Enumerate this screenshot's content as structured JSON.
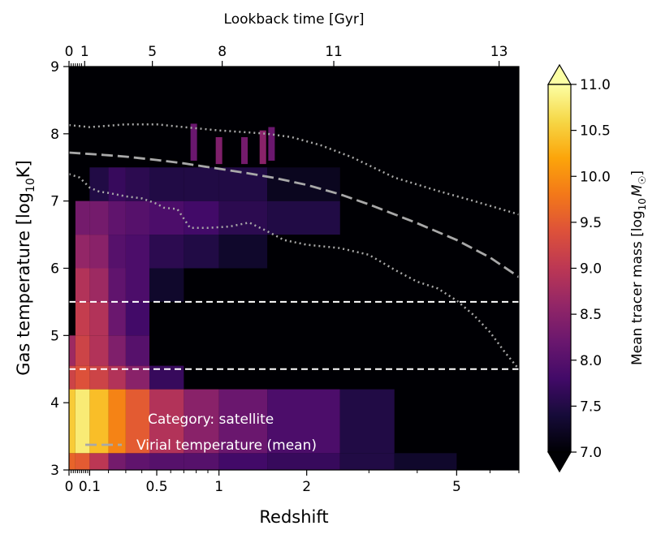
{
  "chart_data": {
    "type": "heatmap",
    "xlabel": "Redshift",
    "ylabel_main": "Gas temperature [log",
    "ylabel_sub": "10",
    "ylabel_end": "K]",
    "top_xlabel": "Lookback time [Gyr]",
    "colorbar_label_main": "Mean tracer mass [log",
    "colorbar_label_sub": "10",
    "colorbar_label_end": "M",
    "colorbar_label_sun": "☉",
    "colorbar_label_close": "]",
    "xlim": [
      0,
      7
    ],
    "ylim": [
      3,
      9
    ],
    "clim": [
      7.0,
      11.0
    ],
    "x_ticks": [
      {
        "value": 0,
        "label": "0"
      },
      {
        "value": 0.1,
        "label": "0.1"
      },
      {
        "value": 0.5,
        "label": "0.5"
      },
      {
        "value": 1,
        "label": "1"
      },
      {
        "value": 2,
        "label": "2"
      },
      {
        "value": 5,
        "label": "5"
      }
    ],
    "y_ticks": [
      {
        "value": 3,
        "label": "3"
      },
      {
        "value": 4,
        "label": "4"
      },
      {
        "value": 5,
        "label": "5"
      },
      {
        "value": 6,
        "label": "6"
      },
      {
        "value": 7,
        "label": "7"
      },
      {
        "value": 8,
        "label": "8"
      },
      {
        "value": 9,
        "label": "9"
      }
    ],
    "top_ticks": [
      {
        "z": 0,
        "label": "0"
      },
      {
        "z": 0.075,
        "label": "1"
      },
      {
        "z": 0.47,
        "label": "5"
      },
      {
        "z": 1.03,
        "label": "8"
      },
      {
        "z": 2.4,
        "label": "11"
      },
      {
        "z": 6.3,
        "label": "13"
      }
    ],
    "colorbar_ticks": [
      {
        "value": 7.0,
        "label": "7.0"
      },
      {
        "value": 7.5,
        "label": "7.5"
      },
      {
        "value": 8.0,
        "label": "8.0"
      },
      {
        "value": 8.5,
        "label": "8.5"
      },
      {
        "value": 9.0,
        "label": "9.0"
      },
      {
        "value": 9.5,
        "label": "9.5"
      },
      {
        "value": 10.0,
        "label": "10.0"
      },
      {
        "value": 10.5,
        "label": "10.5"
      },
      {
        "value": 11.0,
        "label": "11.0"
      }
    ],
    "virial_temperature_mean": {
      "z": [
        0,
        0.1,
        0.2,
        0.3,
        0.5,
        0.7,
        1.0,
        1.3,
        1.6,
        2.0,
        2.5,
        3.0,
        4.0,
        5.0,
        6.0,
        7.0
      ],
      "logT": [
        7.72,
        7.7,
        7.68,
        7.66,
        7.61,
        7.56,
        7.48,
        7.41,
        7.34,
        7.24,
        7.1,
        6.95,
        6.67,
        6.42,
        6.16,
        5.87
      ]
    },
    "upper_dotted": {
      "z": [
        0,
        0.1,
        0.2,
        0.3,
        0.5,
        0.7,
        1.0,
        1.3,
        1.5,
        1.8,
        2.2,
        2.7,
        3.5,
        4.5,
        5.5,
        7.0
      ],
      "logT": [
        8.13,
        8.1,
        8.12,
        8.14,
        8.14,
        8.1,
        8.05,
        8.02,
        8.0,
        7.95,
        7.83,
        7.65,
        7.35,
        7.15,
        7.0,
        6.8
      ]
    },
    "lower_dotted": {
      "z": [
        0,
        0.05,
        0.1,
        0.15,
        0.2,
        0.3,
        0.4,
        0.45,
        0.5,
        0.55,
        0.65,
        0.75,
        0.9,
        1.1,
        1.3,
        1.5,
        1.7,
        2.0,
        2.5,
        3.0,
        3.5,
        4.0,
        4.5,
        5.0,
        5.5,
        6.0,
        6.5,
        7.0
      ],
      "logT": [
        7.4,
        7.35,
        7.2,
        7.14,
        7.12,
        7.07,
        7.04,
        7.0,
        6.96,
        6.9,
        6.88,
        6.6,
        6.6,
        6.62,
        6.68,
        6.55,
        6.42,
        6.35,
        6.3,
        6.2,
        5.98,
        5.8,
        5.7,
        5.52,
        5.3,
        5.05,
        4.75,
        4.5
      ]
    },
    "dashed_horizontal_lines": [
      5.5,
      4.5
    ],
    "band_profiles": [
      {
        "z0": 0.0,
        "z1": 0.03,
        "mass": [
          9.6,
          10.5,
          9.2,
          8.7,
          0,
          0,
          0,
          0,
          0
        ]
      },
      {
        "z0": 0.03,
        "z1": 0.1,
        "mass": [
          9.5,
          10.8,
          9.4,
          9.2,
          9.1,
          8.9,
          8.6,
          8.3,
          0
        ]
      },
      {
        "z0": 0.1,
        "z1": 0.2,
        "mass": [
          9.0,
          10.4,
          9.2,
          8.9,
          8.9,
          8.7,
          8.5,
          8.3,
          7.5
        ]
      },
      {
        "z0": 0.2,
        "z1": 0.3,
        "mass": [
          8.3,
          9.9,
          8.9,
          8.4,
          8.2,
          8.1,
          8.0,
          8.1,
          7.7
        ]
      },
      {
        "z0": 0.3,
        "z1": 0.45,
        "mass": [
          8.1,
          9.5,
          8.5,
          8.0,
          7.8,
          7.9,
          7.9,
          8.0,
          7.6
        ]
      },
      {
        "z0": 0.45,
        "z1": 0.7,
        "mass": [
          8.0,
          8.9,
          7.7,
          7.0,
          7.0,
          7.3,
          7.6,
          7.9,
          7.5
        ]
      },
      {
        "z0": 0.7,
        "z1": 1.0,
        "mass": [
          8.0,
          8.5,
          7.0,
          7.0,
          7.0,
          7.0,
          7.5,
          7.8,
          7.5
        ]
      },
      {
        "z0": 1.0,
        "z1": 1.5,
        "mass": [
          7.8,
          8.2,
          7.0,
          7.0,
          7.0,
          7.0,
          7.3,
          7.6,
          7.5
        ]
      },
      {
        "z0": 1.5,
        "z1": 2.5,
        "mass": [
          7.7,
          7.9,
          7.0,
          7.0,
          7.0,
          7.0,
          7.0,
          7.5,
          7.2
        ]
      },
      {
        "z0": 2.5,
        "z1": 3.5,
        "mass": [
          7.5,
          7.5,
          7.0,
          7.0,
          7.0,
          7.0,
          7.0,
          7.0,
          7.0
        ]
      },
      {
        "z0": 3.5,
        "z1": 5.0,
        "mass": [
          7.3,
          7.0,
          7.0,
          7.0,
          7.0,
          7.0,
          7.0,
          7.0,
          7.0
        ]
      },
      {
        "z0": 5.0,
        "z1": 7.0,
        "mass": [
          7.0,
          7.0,
          7.0,
          7.0,
          7.0,
          7.0,
          7.0,
          7.0,
          7.0
        ]
      }
    ],
    "band_edges_logT": [
      3.0,
      3.25,
      4.2,
      4.55,
      5.0,
      5.5,
      6.0,
      6.5,
      7.0,
      7.5
    ],
    "spikes": [
      {
        "z": 0.78,
        "logT0": 7.6,
        "logT1": 8.15,
        "mass": 8.2
      },
      {
        "z": 1.0,
        "logT0": 7.55,
        "logT1": 7.95,
        "mass": 8.4
      },
      {
        "z": 1.25,
        "logT0": 7.55,
        "logT1": 7.95,
        "mass": 8.3
      },
      {
        "z": 1.45,
        "logT0": 7.55,
        "logT1": 8.05,
        "mass": 8.5
      },
      {
        "z": 1.55,
        "logT0": 7.6,
        "logT1": 8.1,
        "mass": 8.2
      }
    ],
    "legend": {
      "category": "Category: satellite",
      "line_label": "Virial temperature (mean)"
    }
  }
}
